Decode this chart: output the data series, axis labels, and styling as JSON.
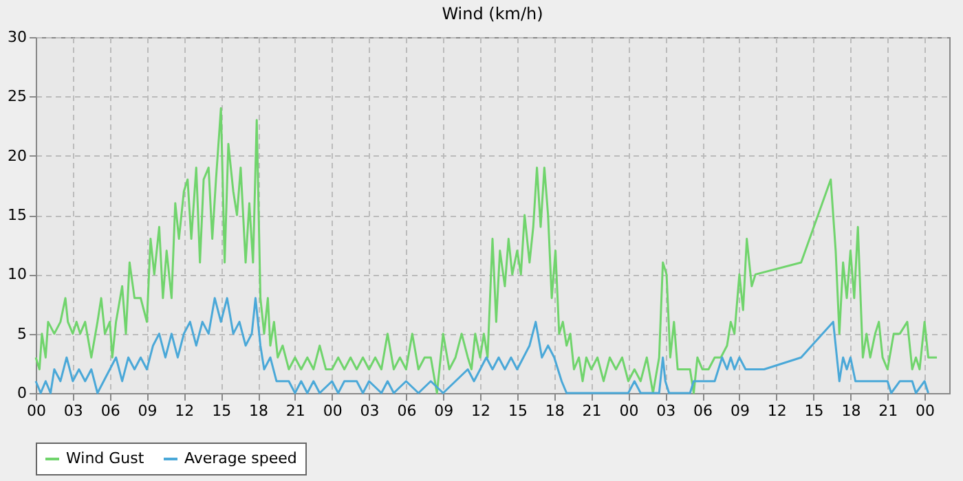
{
  "chart_data": {
    "type": "line",
    "title": "Wind (km/h)",
    "xlim": [
      0,
      74
    ],
    "ylim": [
      0,
      30
    ],
    "yticks": [
      0,
      5,
      10,
      15,
      20,
      25,
      30
    ],
    "xticks": [
      {
        "value": 0,
        "label": "00"
      },
      {
        "value": 3,
        "label": "03"
      },
      {
        "value": 6,
        "label": "06"
      },
      {
        "value": 9,
        "label": "09"
      },
      {
        "value": 12,
        "label": "12"
      },
      {
        "value": 15,
        "label": "15"
      },
      {
        "value": 18,
        "label": "18"
      },
      {
        "value": 21,
        "label": "21"
      },
      {
        "value": 24,
        "label": "00"
      },
      {
        "value": 27,
        "label": "03"
      },
      {
        "value": 30,
        "label": "06"
      },
      {
        "value": 33,
        "label": "09"
      },
      {
        "value": 36,
        "label": "12"
      },
      {
        "value": 39,
        "label": "15"
      },
      {
        "value": 42,
        "label": "18"
      },
      {
        "value": 45,
        "label": "21"
      },
      {
        "value": 48,
        "label": "00"
      },
      {
        "value": 51,
        "label": "03"
      },
      {
        "value": 54,
        "label": "06"
      },
      {
        "value": 57,
        "label": "09"
      },
      {
        "value": 60,
        "label": "12"
      },
      {
        "value": 63,
        "label": "15"
      },
      {
        "value": 66,
        "label": "18"
      },
      {
        "value": 69,
        "label": "21"
      },
      {
        "value": 72,
        "label": "00"
      }
    ],
    "grid": true,
    "legend": "bottom",
    "line_style": "solid",
    "marker": "none",
    "series": [
      {
        "name": "Wind Gust",
        "color": "#70d46c",
        "x": [
          0,
          0.3,
          0.5,
          0.8,
          1,
          1.5,
          2,
          2.4,
          2.6,
          3,
          3.3,
          3.6,
          4,
          4.5,
          5,
          5.3,
          5.6,
          6,
          6.2,
          6.5,
          7,
          7.3,
          7.6,
          8,
          8.5,
          9,
          9.3,
          9.6,
          10,
          10.3,
          10.6,
          11,
          11.3,
          11.6,
          12,
          12.3,
          12.6,
          13,
          13.3,
          13.6,
          14,
          14.3,
          14.6,
          15,
          15.3,
          15.6,
          16,
          16.3,
          16.6,
          17,
          17.3,
          17.6,
          17.9,
          18.2,
          18.5,
          18.8,
          19,
          19.3,
          19.6,
          20,
          20.5,
          21,
          21.5,
          22,
          22.5,
          23,
          23.5,
          24,
          24.5,
          25,
          25.5,
          26,
          26.5,
          27,
          27.5,
          28,
          28.5,
          29,
          29.5,
          30,
          30.5,
          31,
          31.5,
          32,
          32.5,
          33,
          33.5,
          34,
          34.5,
          35,
          35.3,
          35.6,
          36,
          36.3,
          36.6,
          37,
          37.3,
          37.6,
          38,
          38.3,
          38.6,
          39,
          39.3,
          39.6,
          40,
          40.3,
          40.6,
          40.9,
          41.2,
          41.5,
          41.8,
          42.1,
          42.4,
          42.7,
          43,
          43.3,
          43.6,
          44,
          44.3,
          44.6,
          45,
          45.5,
          46,
          46.5,
          47,
          47.5,
          48,
          48.5,
          49,
          49.5,
          50,
          50.5,
          50.8,
          51.1,
          51.4,
          51.7,
          52,
          52.5,
          53,
          53.3,
          53.6,
          54,
          54.5,
          55,
          55.5,
          56,
          56.3,
          56.6,
          57,
          57.3,
          57.6,
          58,
          58.3,
          62,
          64.4,
          64.8,
          65.1,
          65.4,
          65.7,
          66,
          66.3,
          66.6,
          67,
          67.3,
          67.6,
          68,
          68.3,
          68.6,
          69,
          69.5,
          70,
          70.6,
          71,
          71.3,
          71.6,
          72,
          72.3,
          73
        ],
        "values": [
          3,
          2,
          5,
          3,
          6,
          5,
          6,
          8,
          6,
          5,
          6,
          5,
          6,
          3,
          6,
          8,
          5,
          6,
          3,
          6,
          9,
          5,
          11,
          8,
          8,
          6,
          13,
          10,
          14,
          8,
          12,
          8,
          16,
          13,
          17,
          18,
          13,
          19,
          11,
          18,
          19,
          13,
          18,
          24,
          11,
          21,
          17,
          15,
          19,
          11,
          16,
          11,
          23,
          8,
          5,
          8,
          4,
          6,
          3,
          4,
          2,
          3,
          2,
          3,
          2,
          4,
          2,
          2,
          3,
          2,
          3,
          2,
          3,
          2,
          3,
          2,
          5,
          2,
          3,
          2,
          5,
          2,
          3,
          3,
          0,
          5,
          2,
          3,
          5,
          3,
          2,
          5,
          3,
          5,
          3,
          13,
          6,
          12,
          9,
          13,
          10,
          12,
          10,
          15,
          11,
          14,
          19,
          14,
          19,
          15,
          8,
          12,
          5,
          6,
          4,
          5,
          2,
          3,
          1,
          3,
          2,
          3,
          1,
          3,
          2,
          3,
          1,
          2,
          1,
          3,
          0,
          3,
          11,
          10,
          3,
          6,
          2,
          2,
          2,
          0,
          3,
          2,
          2,
          3,
          3,
          4,
          6,
          5,
          10,
          7,
          13,
          9,
          10,
          11,
          18,
          12,
          5,
          11,
          8,
          12,
          8,
          14,
          3,
          5,
          3,
          5,
          6,
          3,
          2,
          5,
          5,
          6,
          2,
          3,
          2,
          6,
          3,
          3
        ]
      },
      {
        "name": "Average speed",
        "color": "#4aa8d8",
        "x": [
          0,
          0.4,
          0.8,
          1.2,
          1.5,
          2,
          2.5,
          3,
          3.5,
          4,
          4.5,
          5,
          5.5,
          6,
          6.5,
          7,
          7.5,
          8,
          8.5,
          9,
          9.5,
          10,
          10.5,
          11,
          11.5,
          12,
          12.5,
          13,
          13.5,
          14,
          14.5,
          15,
          15.5,
          16,
          16.5,
          17,
          17.5,
          17.8,
          18.2,
          18.5,
          19,
          19.5,
          20,
          20.5,
          21,
          21.5,
          22,
          22.5,
          23,
          24,
          24.5,
          25,
          26,
          26.5,
          27,
          28,
          28.5,
          29,
          30,
          31,
          32,
          33,
          34,
          35,
          35.5,
          36,
          36.5,
          37,
          37.5,
          38,
          38.5,
          39,
          39.5,
          40,
          40.5,
          41,
          41.5,
          42,
          42.3,
          42.6,
          43,
          44,
          48,
          48.5,
          49,
          50.5,
          50.8,
          51,
          51.3,
          53,
          53.3,
          54,
          55,
          55.3,
          55.6,
          56,
          56.3,
          56.6,
          57,
          57.5,
          59,
          62,
          64.6,
          64.8,
          65.1,
          65.4,
          65.7,
          66,
          66.4,
          66.8,
          67,
          69,
          69.3,
          70,
          71,
          71.3,
          72,
          72.3
        ],
        "values": [
          1,
          0,
          1,
          0,
          2,
          1,
          3,
          1,
          2,
          1,
          2,
          0,
          1,
          2,
          3,
          1,
          3,
          2,
          3,
          2,
          4,
          5,
          3,
          5,
          3,
          5,
          6,
          4,
          6,
          5,
          8,
          6,
          8,
          5,
          6,
          4,
          5,
          8,
          4,
          2,
          3,
          1,
          1,
          1,
          0,
          1,
          0,
          1,
          0,
          1,
          0,
          1,
          1,
          0,
          1,
          0,
          1,
          0,
          1,
          0,
          1,
          0,
          1,
          2,
          1,
          2,
          3,
          2,
          3,
          2,
          3,
          2,
          3,
          4,
          6,
          3,
          4,
          3,
          2,
          1,
          0,
          0,
          0,
          1,
          0,
          0,
          3,
          1,
          0,
          0,
          1,
          1,
          1,
          2,
          3,
          2,
          3,
          2,
          3,
          2,
          2,
          3,
          6,
          4,
          1,
          3,
          2,
          3,
          1,
          1,
          1,
          1,
          0,
          1,
          1,
          0,
          1,
          0
        ]
      }
    ]
  }
}
